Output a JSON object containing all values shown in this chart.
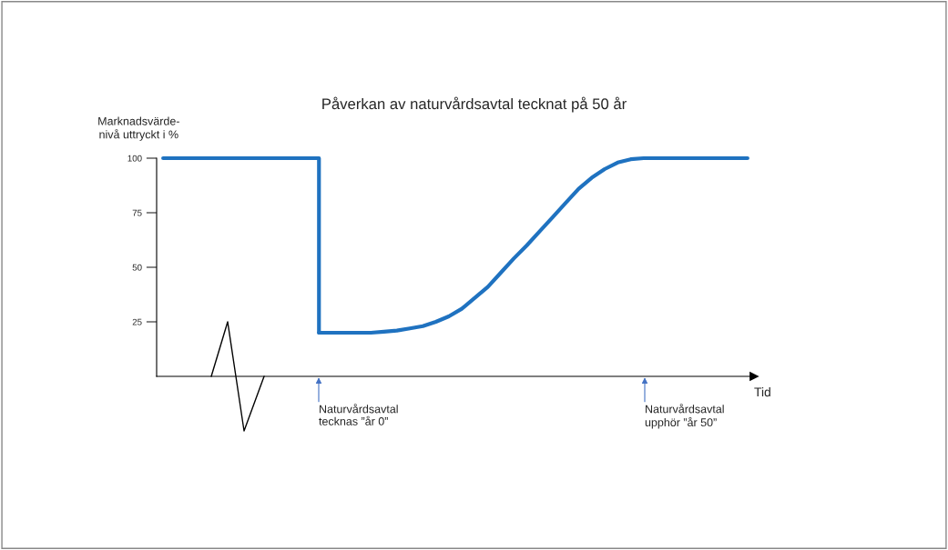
{
  "chart_data": {
    "type": "line",
    "title": "Påverkan av naturvårdsavtal tecknat på 50 år",
    "ylabel": "Marknadsvärde-\nnivå uttryckt i %",
    "xlabel": "Tid",
    "categories": [
      null,
      null,
      null,
      null,
      null,
      null,
      null,
      null,
      null,
      null,
      null,
      null,
      null,
      null,
      null,
      null,
      null,
      null,
      null,
      null,
      null,
      null,
      null,
      null,
      null,
      null,
      null,
      null,
      null,
      null,
      null,
      null,
      null,
      null,
      null,
      null,
      null,
      null,
      null,
      null,
      null,
      null,
      null,
      null,
      null,
      null
    ],
    "series": [
      {
        "type": "step",
        "color": "#1f72c0",
        "values": [
          100,
          100,
          100,
          100,
          100,
          100,
          100,
          100,
          100,
          100,
          100,
          100,
          100,
          20,
          null,
          null,
          null,
          null,
          null,
          null,
          null,
          null,
          null,
          null,
          null,
          null,
          null,
          null,
          null,
          null,
          null,
          null,
          null,
          null,
          null,
          null,
          null,
          null,
          null,
          null,
          null,
          null,
          null,
          null,
          null,
          null
        ]
      },
      {
        "color": "#1f72c0",
        "values": [
          null,
          null,
          null,
          null,
          null,
          null,
          null,
          null,
          null,
          null,
          null,
          null,
          20,
          20,
          20,
          20,
          20,
          20.5,
          21,
          22,
          23,
          25,
          27.5,
          31,
          36,
          41,
          47.5,
          54,
          60,
          66.5,
          73,
          79.5,
          86,
          91,
          95,
          98,
          99.5,
          100,
          100,
          100,
          100,
          100,
          100,
          100,
          100,
          100
        ]
      }
    ],
    "ylim": [
      0,
      100
    ],
    "yticks": [
      25,
      50,
      75,
      100
    ],
    "tick_labels": "y",
    "grid": false,
    "legend": false,
    "annotations": [
      "Naturvårdsavtal\ntecknas ”år 0”",
      "Naturvårdsavtal\nupphör ”år 50”"
    ]
  }
}
